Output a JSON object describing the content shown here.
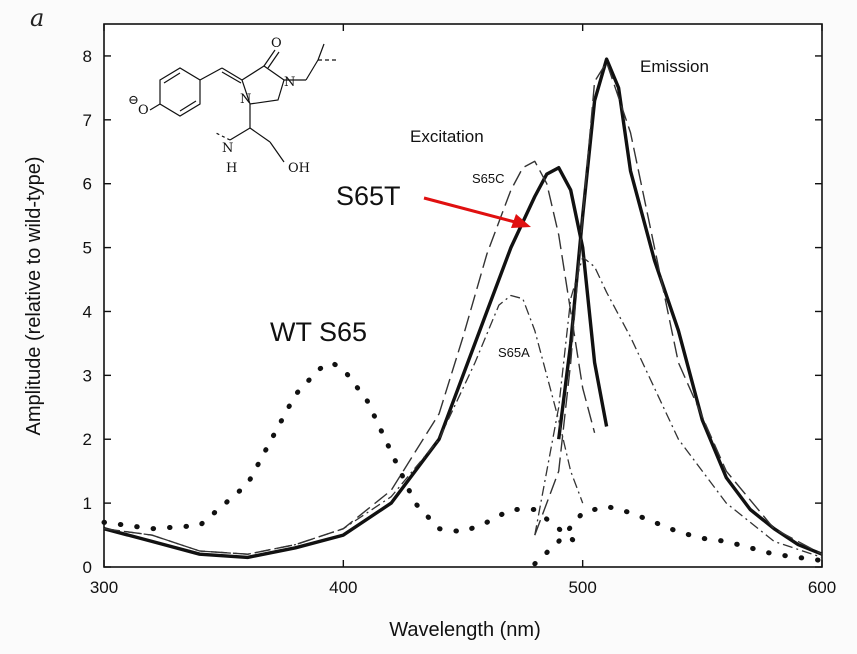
{
  "chart_data": {
    "type": "line",
    "panel_label": "a",
    "xlabel": "Wavelength (nm)",
    "ylabel": "Amplitude (relative to wild-type)",
    "xlim": [
      300,
      600
    ],
    "ylim": [
      0,
      8.5
    ],
    "x_ticks": [
      300,
      400,
      500,
      600
    ],
    "y_ticks": [
      0,
      1,
      2,
      3,
      4,
      5,
      6,
      7,
      8
    ],
    "grid": false,
    "annotations": {
      "excitation": "Excitation",
      "emission": "Emission",
      "s65c": "S65C",
      "s65a": "S65A",
      "wt": "WT S65",
      "s65t": "S65T",
      "s65t_color": "#e01010"
    },
    "chromophore": {
      "o": "O",
      "o_minus": "O",
      "n1": "N",
      "n2": "N",
      "nh_n": "N",
      "nh_h": "H",
      "oh": "OH"
    },
    "series": [
      {
        "name": "WT S65 excitation",
        "style": "dotted",
        "x": [
          300,
          320,
          340,
          360,
          370,
          380,
          390,
          395,
          400,
          410,
          420,
          430,
          440,
          450,
          460,
          470,
          480,
          490,
          500
        ],
        "y": [
          0.7,
          0.6,
          0.65,
          1.3,
          2.0,
          2.7,
          3.1,
          3.2,
          3.1,
          2.6,
          1.8,
          1.0,
          0.6,
          0.55,
          0.7,
          0.9,
          0.9,
          0.6,
          0.3
        ]
      },
      {
        "name": "WT S65 emission",
        "style": "dotted",
        "x": [
          480,
          490,
          500,
          510,
          520,
          530,
          540,
          550,
          560,
          570,
          580,
          590,
          600
        ],
        "y": [
          0.05,
          0.4,
          0.85,
          0.95,
          0.85,
          0.7,
          0.55,
          0.45,
          0.4,
          0.3,
          0.2,
          0.15,
          0.1
        ]
      },
      {
        "name": "S65T excitation",
        "style": "thick",
        "x": [
          300,
          320,
          340,
          360,
          380,
          400,
          420,
          440,
          450,
          460,
          470,
          480,
          485,
          490,
          495,
          500,
          505,
          510
        ],
        "y": [
          0.6,
          0.4,
          0.2,
          0.15,
          0.3,
          0.5,
          1.0,
          2.0,
          3.0,
          4.0,
          5.0,
          5.8,
          6.15,
          6.25,
          5.9,
          5.0,
          3.2,
          2.2
        ]
      },
      {
        "name": "S65T emission",
        "style": "thick",
        "x": [
          490,
          495,
          500,
          505,
          510,
          515,
          520,
          530,
          540,
          550,
          560,
          570,
          580,
          590,
          600
        ],
        "y": [
          2.0,
          3.5,
          5.5,
          7.3,
          7.95,
          7.5,
          6.2,
          4.8,
          3.7,
          2.3,
          1.4,
          0.9,
          0.6,
          0.35,
          0.2
        ]
      },
      {
        "name": "S65C excitation",
        "style": "long-dash",
        "x": [
          300,
          320,
          340,
          360,
          380,
          400,
          420,
          440,
          450,
          460,
          470,
          475,
          480,
          485,
          490,
          495,
          500,
          505
        ],
        "y": [
          0.6,
          0.5,
          0.25,
          0.2,
          0.35,
          0.6,
          1.2,
          2.4,
          3.6,
          4.9,
          5.9,
          6.25,
          6.35,
          6.0,
          5.2,
          4.0,
          2.8,
          2.1
        ]
      },
      {
        "name": "S65C emission",
        "style": "long-dash",
        "x": [
          480,
          490,
          495,
          500,
          505,
          510,
          520,
          530,
          540,
          560,
          580,
          600
        ],
        "y": [
          0.5,
          1.5,
          3.2,
          5.5,
          7.6,
          7.9,
          6.8,
          5.0,
          3.2,
          1.5,
          0.6,
          0.2
        ]
      },
      {
        "name": "S65A excitation",
        "style": "dash-dot",
        "x": [
          300,
          320,
          340,
          360,
          380,
          400,
          420,
          440,
          455,
          465,
          470,
          475,
          480,
          485,
          490,
          495,
          500
        ],
        "y": [
          0.6,
          0.5,
          0.25,
          0.2,
          0.35,
          0.6,
          1.1,
          2.0,
          3.2,
          4.1,
          4.25,
          4.2,
          3.7,
          3.0,
          2.3,
          1.5,
          1.0
        ]
      },
      {
        "name": "S65A emission",
        "style": "dash-dot",
        "x": [
          480,
          490,
          495,
          500,
          505,
          510,
          520,
          530,
          540,
          560,
          580,
          600
        ],
        "y": [
          0.5,
          2.5,
          4.2,
          4.85,
          4.7,
          4.3,
          3.6,
          2.8,
          2.0,
          1.0,
          0.4,
          0.15
        ]
      }
    ]
  }
}
